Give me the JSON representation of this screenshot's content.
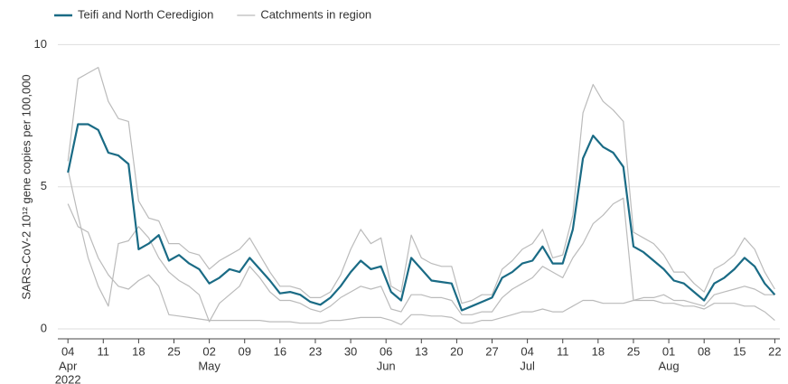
{
  "chart_data": {
    "type": "line",
    "ylabel": "SARS-CoV-2 10¹² gene copies per 100,000",
    "x": [
      "2022-04-04",
      "2022-04-06",
      "2022-04-08",
      "2022-04-10",
      "2022-04-12",
      "2022-04-14",
      "2022-04-16",
      "2022-04-18",
      "2022-04-20",
      "2022-04-22",
      "2022-04-24",
      "2022-04-26",
      "2022-04-28",
      "2022-04-30",
      "2022-05-02",
      "2022-05-04",
      "2022-05-06",
      "2022-05-08",
      "2022-05-10",
      "2022-05-12",
      "2022-05-14",
      "2022-05-16",
      "2022-05-18",
      "2022-05-20",
      "2022-05-22",
      "2022-05-24",
      "2022-05-26",
      "2022-05-28",
      "2022-05-30",
      "2022-06-01",
      "2022-06-03",
      "2022-06-05",
      "2022-06-07",
      "2022-06-09",
      "2022-06-11",
      "2022-06-13",
      "2022-06-15",
      "2022-06-17",
      "2022-06-19",
      "2022-06-21",
      "2022-06-23",
      "2022-06-25",
      "2022-06-27",
      "2022-06-29",
      "2022-07-01",
      "2022-07-03",
      "2022-07-05",
      "2022-07-07",
      "2022-07-09",
      "2022-07-11",
      "2022-07-13",
      "2022-07-15",
      "2022-07-17",
      "2022-07-19",
      "2022-07-21",
      "2022-07-23",
      "2022-07-25",
      "2022-07-27",
      "2022-07-29",
      "2022-07-31",
      "2022-08-02",
      "2022-08-04",
      "2022-08-06",
      "2022-08-08",
      "2022-08-10",
      "2022-08-12",
      "2022-08-14",
      "2022-08-16",
      "2022-08-18",
      "2022-08-20",
      "2022-08-22"
    ],
    "series": [
      {
        "name": "Teifi and North Ceredigion",
        "color": "#1a6b85",
        "values": [
          5.5,
          7.2,
          7.2,
          7.0,
          6.2,
          6.1,
          5.8,
          2.8,
          3.0,
          3.3,
          2.4,
          2.6,
          2.3,
          2.1,
          1.6,
          1.8,
          2.1,
          2.0,
          2.5,
          2.1,
          1.7,
          1.25,
          1.3,
          1.2,
          0.95,
          0.85,
          1.1,
          1.5,
          2.0,
          2.4,
          2.1,
          2.2,
          1.3,
          1.0,
          2.5,
          2.1,
          1.7,
          1.65,
          1.6,
          0.65,
          0.8,
          0.95,
          1.1,
          1.8,
          2.0,
          2.3,
          2.4,
          2.9,
          2.3,
          2.3,
          3.5,
          6.0,
          6.8,
          6.4,
          6.2,
          5.7,
          2.9,
          2.7,
          2.4,
          2.1,
          1.7,
          1.6,
          1.3,
          1.0,
          1.6,
          1.8,
          2.1,
          2.5,
          2.2,
          1.6,
          1.2
        ]
      },
      {
        "name": "Catchments in region",
        "color": "#bbbbbb",
        "lines": [
          [
            5.9,
            8.8,
            9.0,
            9.2,
            8.0,
            7.4,
            7.3,
            4.5,
            3.9,
            3.8,
            3.0,
            3.0,
            2.7,
            2.6,
            2.1,
            2.4,
            2.6,
            2.8,
            3.2,
            2.6,
            2.0,
            1.5,
            1.5,
            1.4,
            1.1,
            1.1,
            1.3,
            1.9,
            2.8,
            3.5,
            3.0,
            3.2,
            1.5,
            1.3,
            3.3,
            2.5,
            2.3,
            2.2,
            2.2,
            0.9,
            1.0,
            1.2,
            1.2,
            2.1,
            2.4,
            2.8,
            3.0,
            3.5,
            2.5,
            2.6,
            4.0,
            7.6,
            8.6,
            8.0,
            7.7,
            7.3,
            3.4,
            3.2,
            3.0,
            2.6,
            2.0,
            2.0,
            1.6,
            1.3,
            2.1,
            2.3,
            2.6,
            3.2,
            2.8,
            2.0,
            1.4
          ],
          [
            4.4,
            3.6,
            3.4,
            2.5,
            1.9,
            1.5,
            1.4,
            1.7,
            1.9,
            1.5,
            0.5,
            0.45,
            0.4,
            0.35,
            0.3,
            0.3,
            0.3,
            0.3,
            0.3,
            0.3,
            0.25,
            0.25,
            0.25,
            0.2,
            0.2,
            0.2,
            0.3,
            0.3,
            0.35,
            0.4,
            0.4,
            0.4,
            0.3,
            0.15,
            0.5,
            0.5,
            0.45,
            0.45,
            0.4,
            0.2,
            0.2,
            0.3,
            0.3,
            0.4,
            0.5,
            0.6,
            0.6,
            0.7,
            0.6,
            0.6,
            0.8,
            1.0,
            1.0,
            0.9,
            0.9,
            0.9,
            1.0,
            1.0,
            1.0,
            0.9,
            0.9,
            0.8,
            0.8,
            0.7,
            0.9,
            0.9,
            0.9,
            0.8,
            0.8,
            0.6,
            0.3
          ],
          [
            5.6,
            4.0,
            2.5,
            1.5,
            0.8,
            3.0,
            3.1,
            3.6,
            3.2,
            2.5,
            2.0,
            1.7,
            1.5,
            1.2,
            0.25,
            0.9,
            1.2,
            1.5,
            2.2,
            1.8,
            1.3,
            1.0,
            1.0,
            0.9,
            0.7,
            0.6,
            0.8,
            1.1,
            1.3,
            1.5,
            1.4,
            1.5,
            0.7,
            0.6,
            1.2,
            1.2,
            1.1,
            1.1,
            1.0,
            0.5,
            0.5,
            0.6,
            0.6,
            1.1,
            1.4,
            1.6,
            1.8,
            2.2,
            2.0,
            1.8,
            2.5,
            3.0,
            3.7,
            4.0,
            4.4,
            4.6,
            1.0,
            1.1,
            1.1,
            1.2,
            1.0,
            1.0,
            0.9,
            0.8,
            1.2,
            1.3,
            1.4,
            1.5,
            1.4,
            1.2,
            1.2
          ]
        ]
      }
    ],
    "xlim": [
      "2022-04-02",
      "2022-08-23"
    ],
    "xticks": [
      {
        "value": "2022-04-04",
        "label": "04"
      },
      {
        "value": "2022-04-11",
        "label": "11"
      },
      {
        "value": "2022-04-18",
        "label": "18"
      },
      {
        "value": "2022-04-25",
        "label": "25"
      },
      {
        "value": "2022-05-02",
        "label": "02"
      },
      {
        "value": "2022-05-09",
        "label": "09"
      },
      {
        "value": "2022-05-16",
        "label": "16"
      },
      {
        "value": "2022-05-23",
        "label": "23"
      },
      {
        "value": "2022-05-30",
        "label": "30"
      },
      {
        "value": "2022-06-06",
        "label": "06"
      },
      {
        "value": "2022-06-13",
        "label": "13"
      },
      {
        "value": "2022-06-20",
        "label": "20"
      },
      {
        "value": "2022-06-27",
        "label": "27"
      },
      {
        "value": "2022-07-04",
        "label": "04"
      },
      {
        "value": "2022-07-11",
        "label": "11"
      },
      {
        "value": "2022-07-18",
        "label": "18"
      },
      {
        "value": "2022-07-25",
        "label": "25"
      },
      {
        "value": "2022-08-01",
        "label": "01"
      },
      {
        "value": "2022-08-08",
        "label": "08"
      },
      {
        "value": "2022-08-15",
        "label": "15"
      },
      {
        "value": "2022-08-22",
        "label": "22"
      }
    ],
    "month_labels": [
      {
        "value": "2022-04-04",
        "label": "Apr"
      },
      {
        "value": "2022-05-02",
        "label": "May"
      },
      {
        "value": "2022-06-06",
        "label": "Jun"
      },
      {
        "value": "2022-07-04",
        "label": "Jul"
      },
      {
        "value": "2022-08-01",
        "label": "Aug"
      }
    ],
    "year_label": {
      "value": "2022-04-04",
      "label": "2022"
    },
    "ylim": [
      -0.35,
      10.3
    ],
    "yticks": [
      0,
      5,
      10
    ],
    "grid": true,
    "legend": "top-left"
  }
}
